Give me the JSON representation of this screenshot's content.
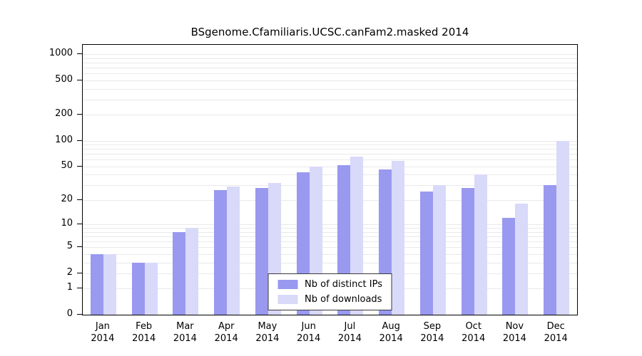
{
  "chart_data": {
    "type": "bar",
    "title": "BSgenome.Cfamiliaris.UCSC.canFam2.masked 2014",
    "categories": [
      "Jan",
      "Feb",
      "Mar",
      "Apr",
      "May",
      "Jun",
      "Jul",
      "Aug",
      "Sep",
      "Oct",
      "Nov",
      "Dec"
    ],
    "year_label": "2014",
    "series": [
      {
        "name": "Nb of distinct IPs",
        "color": "#9999f0",
        "values": [
          4,
          3,
          8,
          26,
          28,
          43,
          52,
          46,
          25,
          28,
          12,
          30
        ]
      },
      {
        "name": "Nb of downloads",
        "color": "#d9d9f9",
        "values": [
          4,
          3,
          9,
          29,
          32,
          50,
          65,
          58,
          30,
          40,
          18,
          100
        ]
      }
    ],
    "yticks": [
      0,
      1,
      2,
      5,
      10,
      20,
      50,
      100,
      200,
      500,
      1000
    ],
    "ylim": [
      0,
      1000
    ],
    "yscale": "log1p",
    "grid": "horizontal-minor-log",
    "legend_position": "bottom-center-inside",
    "xlabel": "",
    "ylabel": ""
  }
}
